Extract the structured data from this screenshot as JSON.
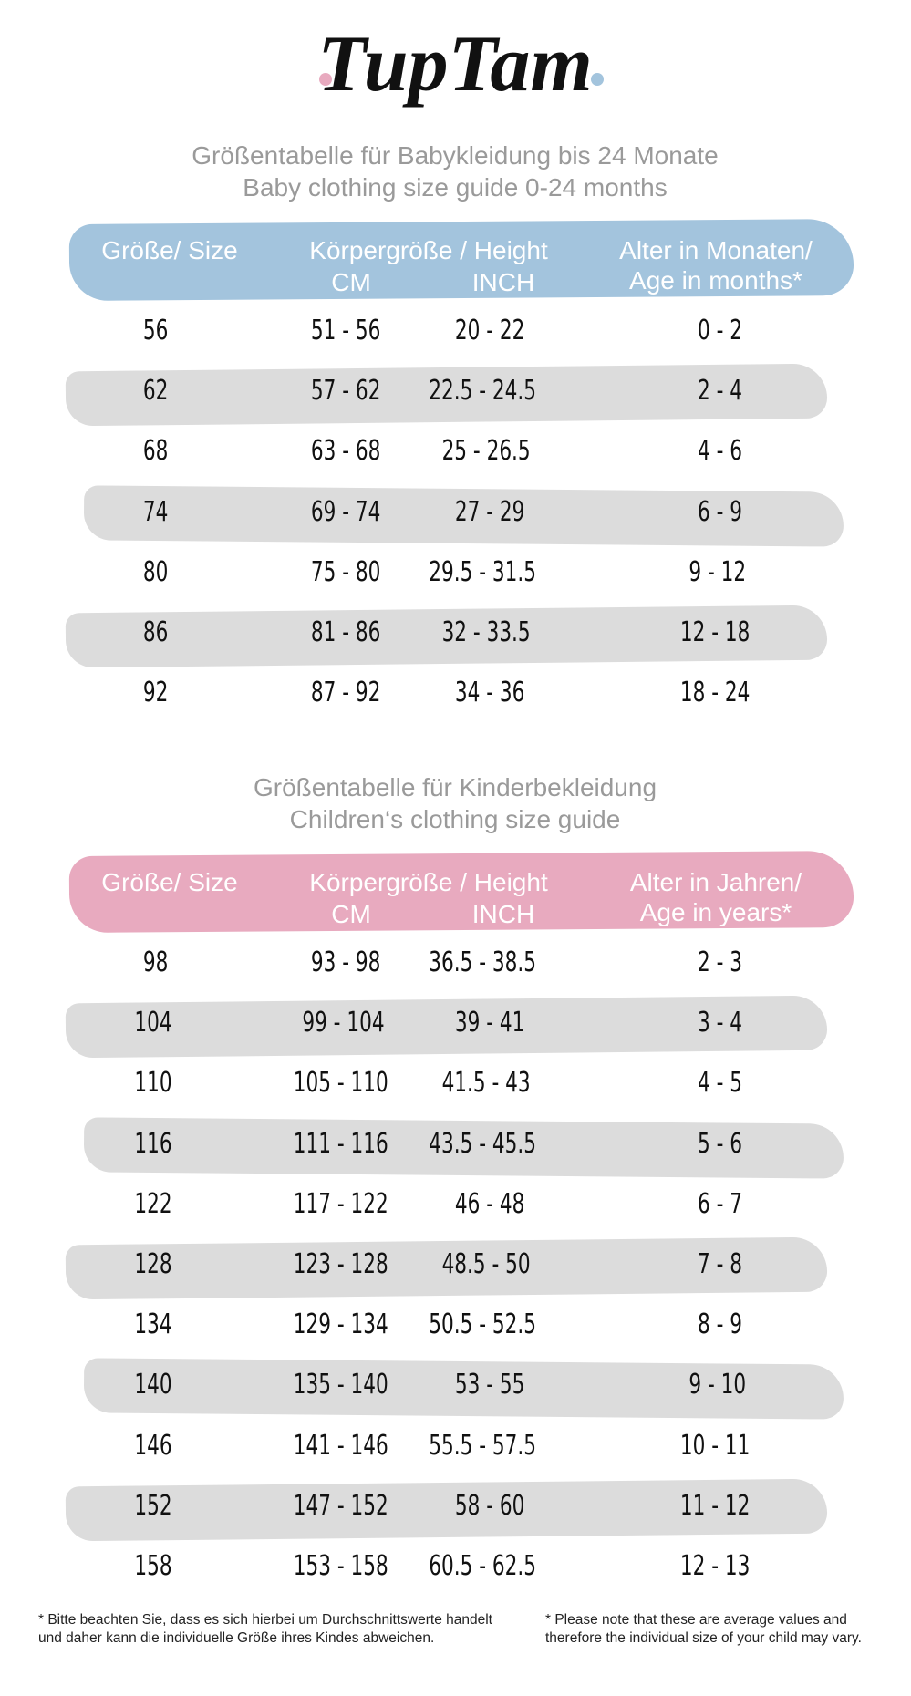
{
  "header": {
    "logo": "TupTam"
  },
  "tables": [
    {
      "title": "Größentabelle für Babykleidung bis 24 Monate",
      "subtitle": "Baby clothing size guide 0-24 months",
      "headers": {
        "size": "Größe/ Size",
        "height": "Körpergröße / Height",
        "cm": "CM",
        "inch": "INCH",
        "age": [
          "Alter in Monaten/",
          "Age in months*"
        ]
      },
      "rows": [
        [
          "56",
          "51 - 56",
          "20 - 22",
          "0 - 2"
        ],
        [
          "62",
          "57 - 62",
          "22.5 - 24.5",
          "2 - 4"
        ],
        [
          "68",
          "63 - 68",
          "25 - 26.5",
          "4 - 6"
        ],
        [
          "74",
          "69 - 74",
          "27 - 29",
          "6 - 9"
        ],
        [
          "80",
          "75 - 80",
          "29.5 - 31.5",
          "9 - 12"
        ],
        [
          "86",
          "81 - 86",
          "32 - 33.5",
          "12 - 18"
        ],
        [
          "92",
          "87 - 92",
          "34 - 36",
          "18 - 24"
        ]
      ]
    },
    {
      "title": "Größentabelle für Kinderbekleidung",
      "subtitle": "Children‘s clothing size guide",
      "headers": {
        "size": "Größe/ Size",
        "height": "Körpergröße / Height",
        "cm": "CM",
        "inch": "INCH",
        "age": [
          "Alter in Jahren/",
          "Age in years*"
        ]
      },
      "rows": [
        [
          "98",
          "93 - 98",
          "36.5 - 38.5",
          "2 - 3"
        ],
        [
          "104",
          "99 - 104",
          "39 - 41",
          "3 - 4"
        ],
        [
          "110",
          "105 - 110",
          "41.5 - 43",
          "4 - 5"
        ],
        [
          "116",
          "111 - 116",
          "43.5 - 45.5",
          "5 - 6"
        ],
        [
          "122",
          "117 - 122",
          "46 - 48",
          "6 - 7"
        ],
        [
          "128",
          "123 - 128",
          "48.5 - 50",
          "7 - 8"
        ],
        [
          "134",
          "129 - 134",
          "50.5 - 52.5",
          "8 - 9"
        ],
        [
          "140",
          "135 - 140",
          "53 - 55",
          "9 - 10"
        ],
        [
          "146",
          "141 - 146",
          "55.5 - 57.5",
          "10 - 11"
        ],
        [
          "152",
          "147 - 152",
          "58 - 60",
          "11 - 12"
        ],
        [
          "158",
          "153 - 158",
          "60.5 - 62.5",
          "12 - 13"
        ]
      ]
    }
  ],
  "footnotes": {
    "german": [
      "* Bitte beachten Sie, dass es sich hierbei um Durchschnittswerte handelt",
      "und daher kann die individuelle Größe ihres Kindes abweichen."
    ],
    "english": [
      "* Please note that these are average values and",
      "therefore the individual size of your child may vary."
    ]
  }
}
